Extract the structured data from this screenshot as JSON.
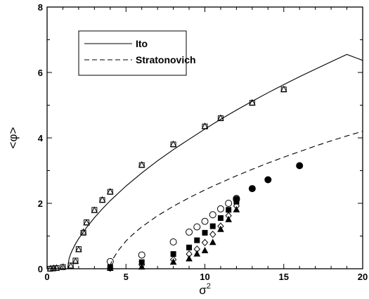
{
  "chart_data": {
    "type": "scatter",
    "title": "",
    "xlabel": "σ",
    "xlabel_superscript": "2",
    "ylabel": "<φ>",
    "xlim": [
      0,
      20
    ],
    "ylim": [
      0,
      8
    ],
    "x_ticks": [
      0,
      5,
      10,
      15,
      20
    ],
    "x_tick_labels": [
      "0",
      "5",
      "10",
      "15",
      "20"
    ],
    "y_ticks": [
      0,
      2,
      4,
      6,
      8
    ],
    "y_tick_labels": [
      "0",
      "2",
      "4",
      "6",
      "8"
    ],
    "grid": false,
    "legend_position": "top-left",
    "legend": [
      {
        "label": "Ito",
        "style": "solid"
      },
      {
        "label": "Stratonovich",
        "style": "dashed"
      }
    ],
    "curves": [
      {
        "name": "Ito",
        "style": "solid",
        "color": "#000000",
        "x": [
          0,
          1.3,
          1.4,
          1.5,
          1.6,
          1.8,
          2.0,
          2.5,
          3.0,
          3.5,
          4.0,
          5.0,
          6.0,
          7.0,
          8.0,
          9.0,
          10.0,
          11.0,
          12.0,
          13.0,
          14.0,
          15.0,
          16.0,
          17.0,
          18.0,
          19.0,
          20.0
        ],
        "y": [
          0,
          0,
          0.32,
          0.46,
          0.57,
          0.76,
          0.92,
          1.26,
          1.56,
          1.83,
          2.08,
          2.53,
          2.93,
          3.3,
          3.64,
          3.96,
          4.27,
          4.57,
          4.85,
          5.12,
          5.38,
          5.63,
          5.87,
          6.1,
          6.33,
          6.55,
          6.37
        ]
      },
      {
        "name": "Stratonovich",
        "style": "dashed",
        "color": "#000000",
        "x": [
          0,
          3.9,
          4.0,
          4.2,
          4.5,
          5.0,
          5.5,
          6.0,
          7.0,
          8.0,
          9.0,
          10.0,
          11.0,
          12.0,
          13.0,
          14.0,
          15.0,
          16.0,
          17.0,
          18.0,
          19.0,
          20.0
        ],
        "y": [
          0,
          0,
          0.12,
          0.32,
          0.55,
          0.85,
          1.08,
          1.28,
          1.62,
          1.91,
          2.17,
          2.41,
          2.63,
          2.84,
          3.04,
          3.23,
          3.41,
          3.58,
          3.75,
          3.91,
          4.06,
          4.2
        ]
      }
    ],
    "series": [
      {
        "marker": "square-open",
        "x": [
          0.2,
          0.4,
          0.6,
          1.0,
          1.5,
          1.8,
          2.0,
          2.3,
          2.5,
          3.0,
          3.5,
          4.0,
          6.0,
          8.0,
          10.0,
          11.0,
          13.0,
          15.0
        ],
        "y": [
          0.0,
          0.01,
          0.02,
          0.05,
          0.1,
          0.25,
          0.6,
          1.1,
          1.42,
          1.8,
          2.1,
          2.35,
          3.17,
          3.8,
          4.35,
          4.6,
          5.07,
          5.48
        ]
      },
      {
        "marker": "triangle-open",
        "x": [
          0.2,
          0.4,
          0.6,
          1.0,
          1.5,
          1.8,
          2.0,
          2.3,
          2.5,
          3.0,
          3.5,
          4.0,
          6.0,
          8.0,
          10.0,
          11.0,
          13.0,
          15.0
        ],
        "y": [
          0.0,
          0.01,
          0.02,
          0.05,
          0.08,
          0.22,
          0.58,
          1.12,
          1.4,
          1.78,
          2.1,
          2.35,
          3.17,
          3.8,
          4.35,
          4.6,
          5.07,
          5.48
        ]
      },
      {
        "marker": "circle-open",
        "x": [
          4.0,
          6.0,
          8.0,
          9.0,
          9.5,
          10.0,
          10.5,
          11.0,
          11.5,
          12.0
        ],
        "y": [
          0.22,
          0.42,
          0.82,
          1.12,
          1.28,
          1.45,
          1.65,
          1.83,
          2.0,
          2.15
        ]
      },
      {
        "marker": "square-filled",
        "x": [
          4.0,
          6.0,
          8.0,
          9.0,
          9.5,
          10.0,
          10.5,
          11.0,
          11.5,
          12.0
        ],
        "y": [
          0.05,
          0.2,
          0.45,
          0.65,
          0.87,
          1.1,
          1.3,
          1.55,
          1.8,
          2.05
        ]
      },
      {
        "marker": "diamond-open",
        "x": [
          4.0,
          6.0,
          8.0,
          9.0,
          9.5,
          10.0,
          10.5,
          11.0,
          11.5,
          12.0
        ],
        "y": [
          0.02,
          0.12,
          0.28,
          0.45,
          0.6,
          0.8,
          1.05,
          1.3,
          1.62,
          1.92
        ]
      },
      {
        "marker": "triangle-filled",
        "x": [
          4.0,
          6.0,
          8.0,
          9.0,
          9.5,
          10.0,
          10.5,
          11.0,
          11.5,
          12.0
        ],
        "y": [
          0.01,
          0.05,
          0.2,
          0.3,
          0.45,
          0.55,
          0.8,
          1.2,
          1.5,
          1.8
        ]
      },
      {
        "marker": "circle-filled",
        "x": [
          12.0,
          13.0,
          14.0,
          16.0
        ],
        "y": [
          2.12,
          2.45,
          2.72,
          3.15
        ]
      }
    ]
  }
}
